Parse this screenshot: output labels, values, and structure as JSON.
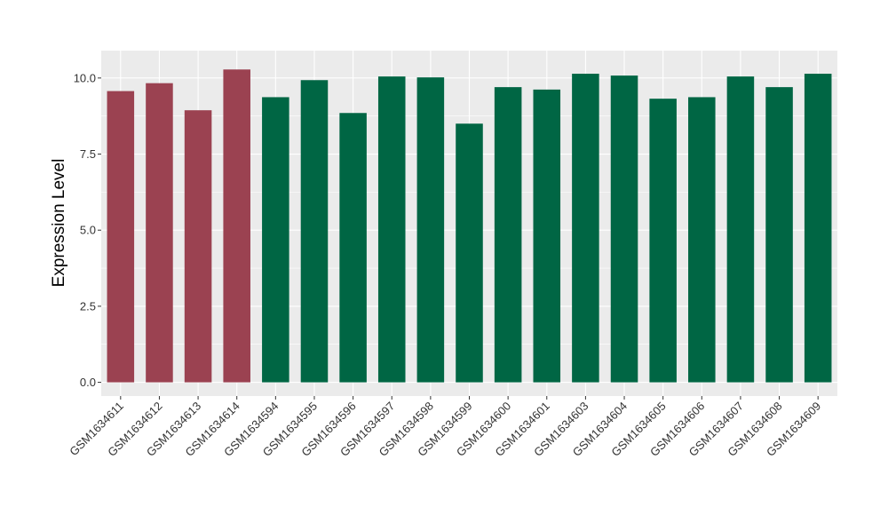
{
  "chart_data": {
    "type": "bar",
    "title": "",
    "xlabel": "",
    "ylabel": "Expression Level",
    "ylim": [
      -0.45,
      10.9
    ],
    "yticks": [
      0.0,
      2.5,
      5.0,
      7.5,
      10.0
    ],
    "ytick_labels": [
      "0.0",
      "2.5",
      "5.0",
      "7.5",
      "10.0"
    ],
    "grid": true,
    "legend": "none",
    "categories": [
      "GSM1634611",
      "GSM1634612",
      "GSM1634613",
      "GSM1634614",
      "GSM1634594",
      "GSM1634595",
      "GSM1634596",
      "GSM1634597",
      "GSM1634598",
      "GSM1634599",
      "GSM1634600",
      "GSM1634601",
      "GSM1634603",
      "GSM1634604",
      "GSM1634605",
      "GSM1634606",
      "GSM1634607",
      "GSM1634608",
      "GSM1634609"
    ],
    "values": [
      9.57,
      9.83,
      8.94,
      10.28,
      9.37,
      9.93,
      8.85,
      10.05,
      10.02,
      8.5,
      9.7,
      9.62,
      10.14,
      10.08,
      9.32,
      9.37,
      10.05,
      9.7,
      10.14
    ],
    "bar_colors": [
      "#9b4251",
      "#9b4251",
      "#9b4251",
      "#9b4251",
      "#006644",
      "#006644",
      "#006644",
      "#006644",
      "#006644",
      "#006644",
      "#006644",
      "#006644",
      "#006644",
      "#006644",
      "#006644",
      "#006644",
      "#006644",
      "#006644",
      "#006644"
    ],
    "colors": {
      "panel_background": "#ebebeb",
      "grid": "#ffffff",
      "group_1": "#9b4251",
      "group_2": "#006644"
    }
  }
}
